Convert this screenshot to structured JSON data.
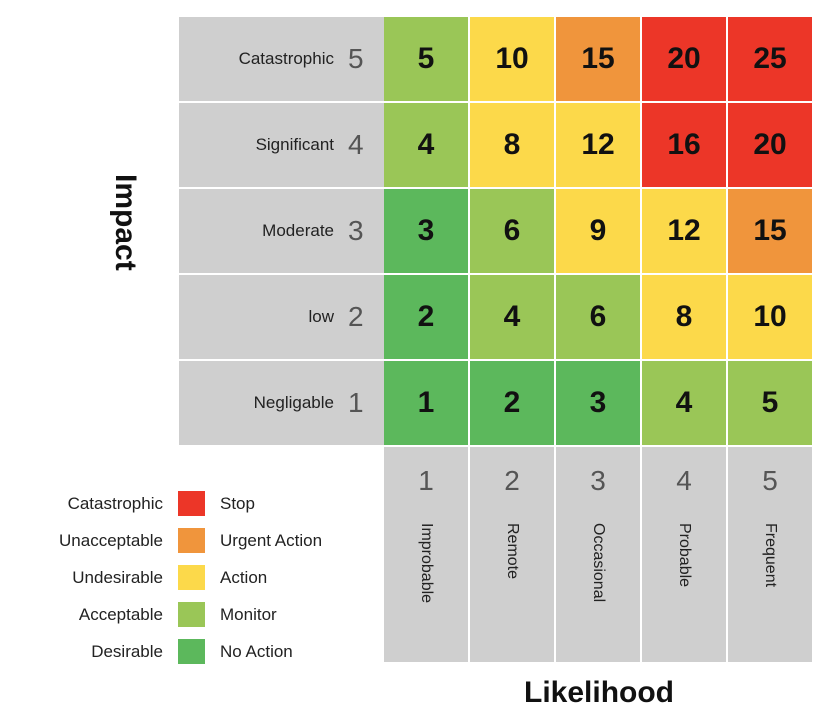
{
  "colors": {
    "dark_green": "#5cb85c",
    "light_green": "#9ac657",
    "yellow": "#fcd94a",
    "orange": "#f0953c",
    "red": "#ec3628",
    "header_grey": "#cfcfcf"
  },
  "axes": {
    "y_title": "Impact",
    "x_title": "Likelihood"
  },
  "impact_rows": [
    {
      "label": "Catastrophic",
      "level": "5",
      "scores": [
        "5",
        "10",
        "15",
        "20",
        "25"
      ],
      "colors": [
        "light_green",
        "yellow",
        "orange",
        "red",
        "red"
      ]
    },
    {
      "label": "Significant",
      "level": "4",
      "scores": [
        "4",
        "8",
        "12",
        "16",
        "20"
      ],
      "colors": [
        "light_green",
        "yellow",
        "yellow",
        "red",
        "red"
      ]
    },
    {
      "label": "Moderate",
      "level": "3",
      "scores": [
        "3",
        "6",
        "9",
        "12",
        "15"
      ],
      "colors": [
        "dark_green",
        "light_green",
        "yellow",
        "yellow",
        "orange"
      ]
    },
    {
      "label": "low",
      "level": "2",
      "scores": [
        "2",
        "4",
        "6",
        "8",
        "10"
      ],
      "colors": [
        "dark_green",
        "light_green",
        "light_green",
        "yellow",
        "yellow"
      ]
    },
    {
      "label": "Negligable",
      "level": "1",
      "scores": [
        "1",
        "2",
        "3",
        "4",
        "5"
      ],
      "colors": [
        "dark_green",
        "dark_green",
        "dark_green",
        "light_green",
        "light_green"
      ]
    }
  ],
  "likelihood_cols": [
    {
      "level": "1",
      "label": "Improbable"
    },
    {
      "level": "2",
      "label": "Remote"
    },
    {
      "level": "3",
      "label": "Occasional"
    },
    {
      "level": "4",
      "label": "Probable"
    },
    {
      "level": "5",
      "label": "Frequent"
    }
  ],
  "legend": [
    {
      "rating": "Catastrophic",
      "action": "Stop",
      "color": "red"
    },
    {
      "rating": "Unacceptable",
      "action": "Urgent Action",
      "color": "orange"
    },
    {
      "rating": "Undesirable",
      "action": "Action",
      "color": "yellow"
    },
    {
      "rating": "Acceptable",
      "action": "Monitor",
      "color": "light_green"
    },
    {
      "rating": "Desirable",
      "action": "No Action",
      "color": "dark_green"
    }
  ]
}
